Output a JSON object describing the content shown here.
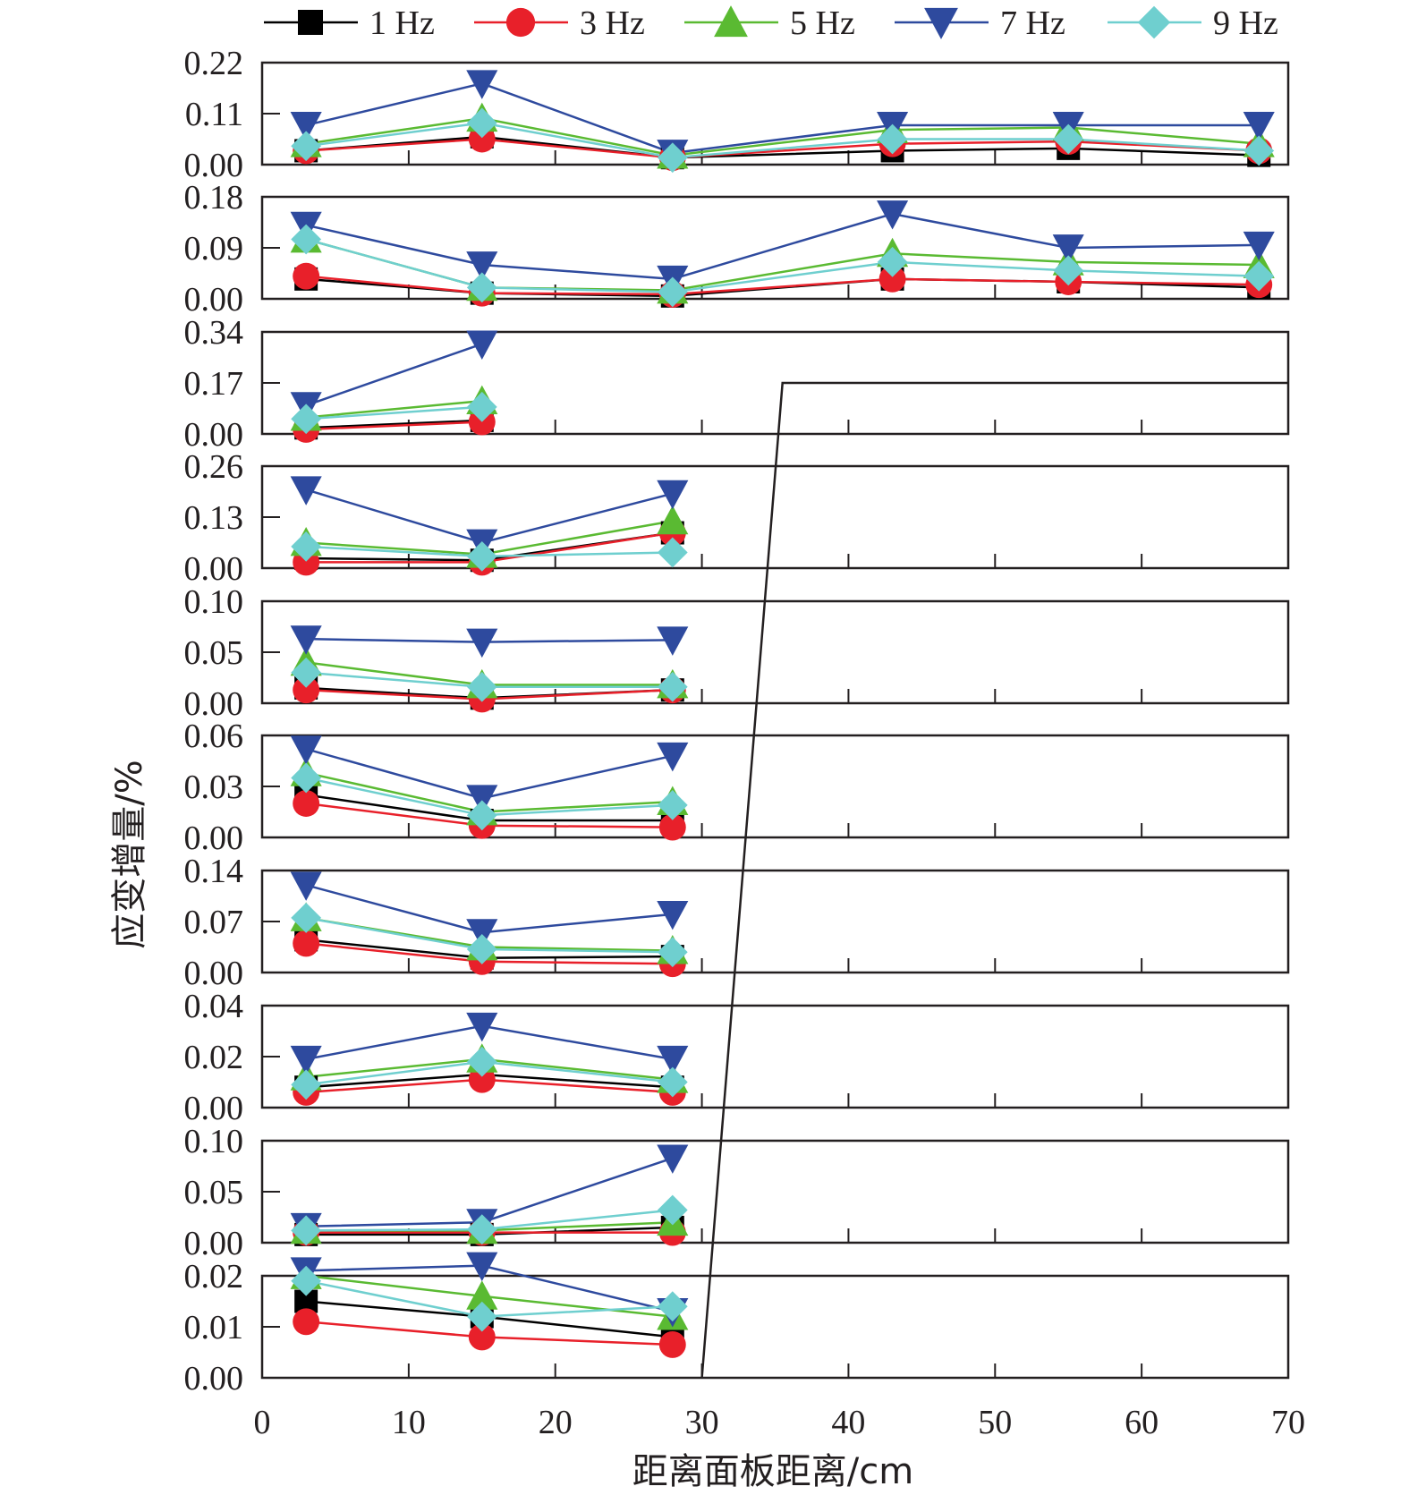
{
  "chart_data": {
    "type": "line",
    "xlabel": "距离面板距离/cm",
    "ylabel": "应变增量/%",
    "xlim": [
      0,
      70
    ],
    "x_ticks": [
      "0",
      "10",
      "20",
      "30",
      "40",
      "50",
      "60",
      "70"
    ],
    "legend": {
      "placement": "top",
      "entries": [
        {
          "label": "1 Hz",
          "color": "#000000",
          "marker": "square"
        },
        {
          "label": "3 Hz",
          "color": "#e8202a",
          "marker": "circle"
        },
        {
          "label": "5 Hz",
          "color": "#5aba32",
          "marker": "triangle-up"
        },
        {
          "label": "7 Hz",
          "color": "#2e4a9e",
          "marker": "triangle-down"
        },
        {
          "label": "9 Hz",
          "color": "#6fcfcf",
          "marker": "diamond"
        }
      ]
    },
    "panels": [
      {
        "ylim": [
          0,
          0.22
        ],
        "y_ticks": [
          "0.00",
          "0.11",
          "0.22"
        ],
        "x": [
          3,
          15,
          28,
          43,
          55,
          68
        ],
        "series": [
          {
            "name": "1 Hz",
            "values": [
              0.03,
              0.06,
              0.015,
              0.03,
              0.035,
              0.02
            ]
          },
          {
            "name": "3 Hz",
            "values": [
              0.03,
              0.055,
              0.015,
              0.045,
              0.05,
              0.03
            ]
          },
          {
            "name": "5 Hz",
            "values": [
              0.045,
              0.1,
              0.02,
              0.075,
              0.08,
              0.045
            ]
          },
          {
            "name": "7 Hz",
            "values": [
              0.085,
              0.175,
              0.025,
              0.085,
              0.085,
              0.085
            ]
          },
          {
            "name": "9 Hz",
            "values": [
              0.04,
              0.09,
              0.015,
              0.055,
              0.055,
              0.03
            ]
          }
        ]
      },
      {
        "ylim": [
          0,
          0.18
        ],
        "y_ticks": [
          "0.00",
          "0.09",
          "0.18"
        ],
        "x": [
          3,
          15,
          28,
          43,
          55,
          68
        ],
        "series": [
          {
            "name": "1 Hz",
            "values": [
              0.035,
              0.01,
              0.005,
              0.035,
              0.03,
              0.02
            ]
          },
          {
            "name": "3 Hz",
            "values": [
              0.04,
              0.01,
              0.008,
              0.035,
              0.03,
              0.025
            ]
          },
          {
            "name": "5 Hz",
            "values": [
              0.105,
              0.02,
              0.015,
              0.08,
              0.065,
              0.06
            ]
          },
          {
            "name": "7 Hz",
            "values": [
              0.13,
              0.06,
              0.035,
              0.15,
              0.09,
              0.095
            ]
          },
          {
            "name": "9 Hz",
            "values": [
              0.105,
              0.02,
              0.012,
              0.065,
              0.05,
              0.04
            ]
          }
        ]
      },
      {
        "ylim": [
          0,
          0.34
        ],
        "y_ticks": [
          "0.00",
          "0.17",
          "0.34"
        ],
        "x": [
          3,
          15
        ],
        "series": [
          {
            "name": "1 Hz",
            "values": [
              0.02,
              0.045
            ]
          },
          {
            "name": "3 Hz",
            "values": [
              0.015,
              0.04
            ]
          },
          {
            "name": "5 Hz",
            "values": [
              0.055,
              0.11
            ]
          },
          {
            "name": "7 Hz",
            "values": [
              0.095,
              0.3
            ]
          },
          {
            "name": "9 Hz",
            "values": [
              0.05,
              0.09
            ]
          }
        ]
      },
      {
        "ylim": [
          0,
          0.26
        ],
        "y_ticks": [
          "0.00",
          "0.13",
          "0.26"
        ],
        "x": [
          3,
          15,
          28
        ],
        "series": [
          {
            "name": "1 Hz",
            "values": [
              0.025,
              0.02,
              0.09
            ]
          },
          {
            "name": "3 Hz",
            "values": [
              0.015,
              0.015,
              0.09
            ]
          },
          {
            "name": "5 Hz",
            "values": [
              0.065,
              0.035,
              0.12
            ]
          },
          {
            "name": "7 Hz",
            "values": [
              0.2,
              0.065,
              0.19
            ]
          },
          {
            "name": "9 Hz",
            "values": [
              0.055,
              0.03,
              0.04
            ]
          }
        ]
      },
      {
        "ylim": [
          0,
          0.1
        ],
        "y_ticks": [
          "0.00",
          "0.05",
          "0.10"
        ],
        "x": [
          3,
          15,
          28
        ],
        "series": [
          {
            "name": "1 Hz",
            "values": [
              0.015,
              0.005,
              0.013
            ]
          },
          {
            "name": "3 Hz",
            "values": [
              0.013,
              0.004,
              0.013
            ]
          },
          {
            "name": "5 Hz",
            "values": [
              0.04,
              0.018,
              0.018
            ]
          },
          {
            "name": "7 Hz",
            "values": [
              0.063,
              0.06,
              0.062
            ]
          },
          {
            "name": "9 Hz",
            "values": [
              0.03,
              0.016,
              0.016
            ]
          }
        ]
      },
      {
        "ylim": [
          0,
          0.06
        ],
        "y_ticks": [
          "0.00",
          "0.03",
          "0.06"
        ],
        "x": [
          3,
          15,
          28
        ],
        "series": [
          {
            "name": "1 Hz",
            "values": [
              0.025,
              0.01,
              0.01
            ]
          },
          {
            "name": "3 Hz",
            "values": [
              0.02,
              0.007,
              0.006
            ]
          },
          {
            "name": "5 Hz",
            "values": [
              0.038,
              0.015,
              0.021
            ]
          },
          {
            "name": "7 Hz",
            "values": [
              0.052,
              0.023,
              0.048
            ]
          },
          {
            "name": "9 Hz",
            "values": [
              0.035,
              0.013,
              0.019
            ]
          }
        ]
      },
      {
        "ylim": [
          0,
          0.14
        ],
        "y_ticks": [
          "0.00",
          "0.07",
          "0.14"
        ],
        "x": [
          3,
          15,
          28
        ],
        "series": [
          {
            "name": "1 Hz",
            "values": [
              0.045,
              0.02,
              0.022
            ]
          },
          {
            "name": "3 Hz",
            "values": [
              0.04,
              0.015,
              0.012
            ]
          },
          {
            "name": "5 Hz",
            "values": [
              0.075,
              0.035,
              0.03
            ]
          },
          {
            "name": "7 Hz",
            "values": [
              0.12,
              0.055,
              0.08
            ]
          },
          {
            "name": "9 Hz",
            "values": [
              0.075,
              0.032,
              0.028
            ]
          }
        ]
      },
      {
        "ylim": [
          0,
          0.04
        ],
        "y_ticks": [
          "0.00",
          "0.02",
          "0.04"
        ],
        "x": [
          3,
          15,
          28
        ],
        "series": [
          {
            "name": "1 Hz",
            "values": [
              0.008,
              0.013,
              0.008
            ]
          },
          {
            "name": "3 Hz",
            "values": [
              0.006,
              0.011,
              0.006
            ]
          },
          {
            "name": "5 Hz",
            "values": [
              0.012,
              0.019,
              0.011
            ]
          },
          {
            "name": "7 Hz",
            "values": [
              0.019,
              0.032,
              0.019
            ]
          },
          {
            "name": "9 Hz",
            "values": [
              0.009,
              0.018,
              0.01
            ]
          }
        ]
      },
      {
        "ylim": [
          0,
          0.1
        ],
        "y_ticks": [
          "0.00",
          "0.05",
          "0.10"
        ],
        "x": [
          3,
          15,
          28
        ],
        "series": [
          {
            "name": "1 Hz",
            "values": [
              0.008,
              0.008,
              0.015
            ]
          },
          {
            "name": "3 Hz",
            "values": [
              0.01,
              0.01,
              0.01
            ]
          },
          {
            "name": "5 Hz",
            "values": [
              0.012,
              0.012,
              0.02
            ]
          },
          {
            "name": "7 Hz",
            "values": [
              0.016,
              0.02,
              0.083
            ]
          },
          {
            "name": "9 Hz",
            "values": [
              0.012,
              0.013,
              0.032
            ]
          }
        ]
      },
      {
        "ylim": [
          0,
          0.02
        ],
        "y_ticks": [
          "0.00",
          "0.01",
          "0.02"
        ],
        "x": [
          3,
          15,
          28
        ],
        "series": [
          {
            "name": "1 Hz",
            "values": [
              0.015,
              0.012,
              0.008
            ]
          },
          {
            "name": "3 Hz",
            "values": [
              0.011,
              0.008,
              0.0065
            ]
          },
          {
            "name": "5 Hz",
            "values": [
              0.02,
              0.016,
              0.012
            ]
          },
          {
            "name": "7 Hz",
            "values": [
              0.021,
              0.022,
              0.013
            ]
          },
          {
            "name": "9 Hz",
            "values": [
              0.019,
              0.012,
              0.014
            ]
          }
        ]
      }
    ],
    "annotation_line": {
      "bottom_x": 30,
      "top_x": 35.5,
      "top_panel": 3,
      "top_y": 0.17,
      "extends_to_x": 70
    }
  }
}
